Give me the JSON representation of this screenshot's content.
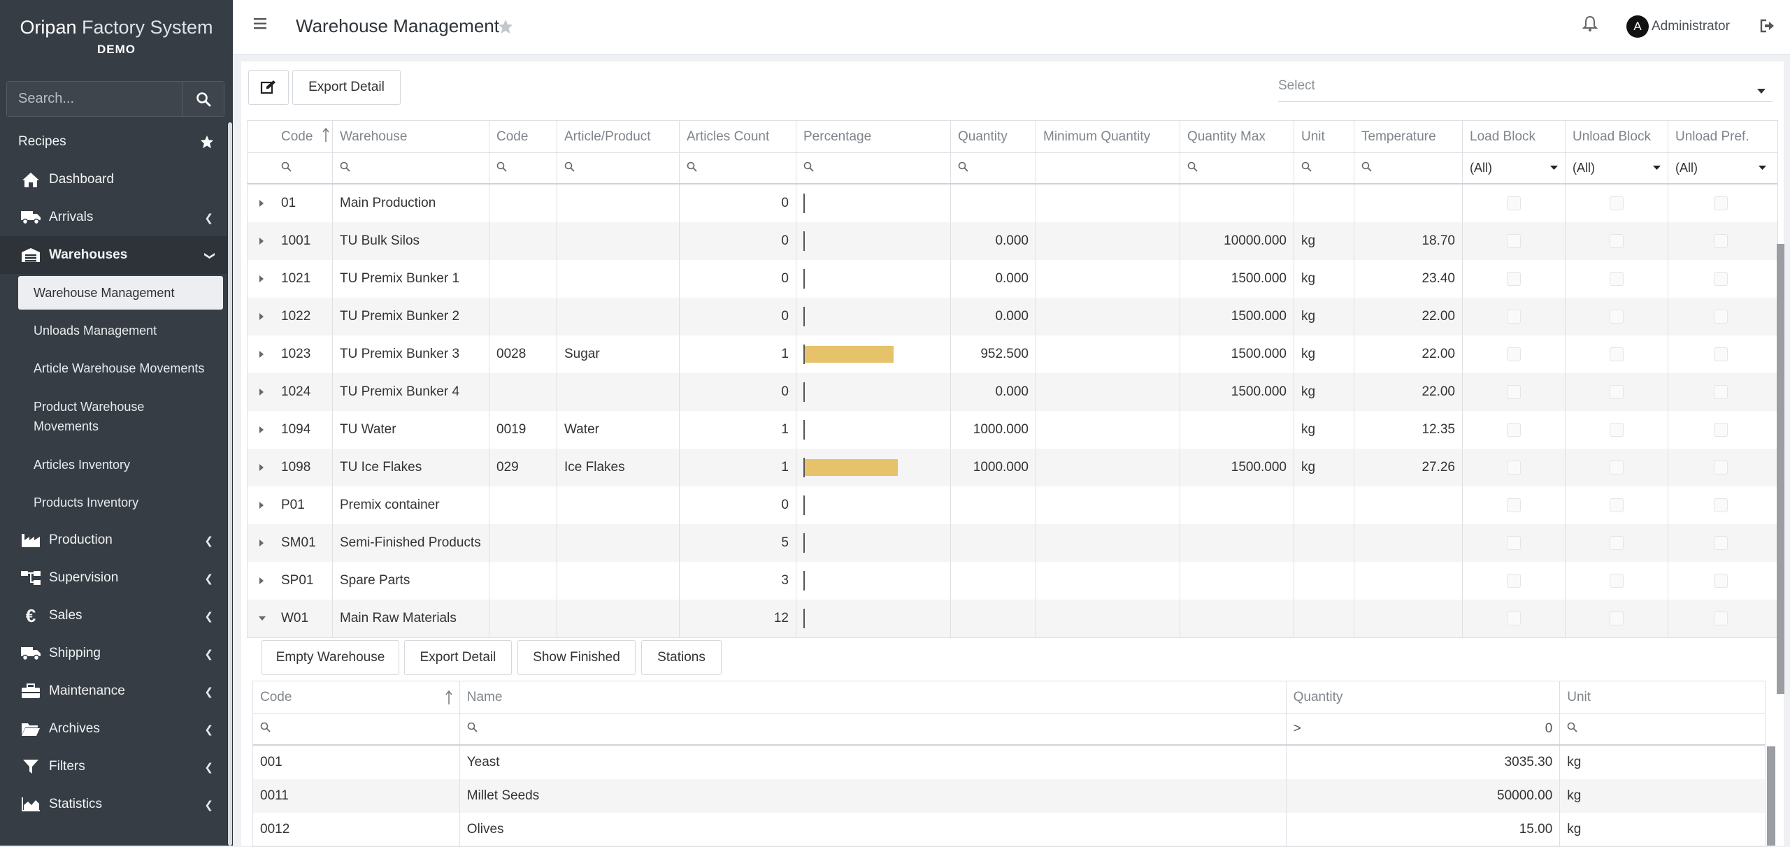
{
  "sidebar": {
    "brand": {
      "name_part1": "Oripan",
      "name_part2": "Factory System",
      "edition": "DEMO"
    },
    "search": {
      "placeholder": "Search..."
    },
    "items": [
      {
        "label": "Recipes"
      },
      {
        "label": "Dashboard"
      },
      {
        "label": "Arrivals"
      },
      {
        "label": "Warehouses"
      },
      {
        "label": "Production"
      },
      {
        "label": "Supervision"
      },
      {
        "label": "Sales"
      },
      {
        "label": "Shipping"
      },
      {
        "label": "Maintenance"
      },
      {
        "label": "Archives"
      },
      {
        "label": "Filters"
      },
      {
        "label": "Statistics"
      }
    ],
    "warehouse_sub": [
      {
        "label": "Warehouse Management"
      },
      {
        "label": "Unloads Management"
      },
      {
        "label": "Article Warehouse Movements"
      },
      {
        "label": "Product Warehouse Movements"
      },
      {
        "label": "Articles Inventory"
      },
      {
        "label": "Products Inventory"
      }
    ]
  },
  "header": {
    "title": "Warehouse Management",
    "user": "Administrator",
    "avatar_letter": "A"
  },
  "toolbar": {
    "export_label": "Export Detail",
    "select_placeholder": "Select"
  },
  "grid": {
    "columns": [
      "Code",
      "Warehouse",
      "Code",
      "Article/Product",
      "Articles Count",
      "Percentage",
      "Quantity",
      "Minimum Quantity",
      "Quantity Max",
      "Unit",
      "Temperature",
      "Load Block",
      "Unload Block",
      "Unload Pref."
    ],
    "filter_all": "(All)",
    "rows": [
      {
        "code": "01",
        "warehouse": "Main Production",
        "code2": "",
        "article": "",
        "count": "0",
        "pct": 0,
        "qty": "",
        "max": "",
        "unit": "",
        "temp": ""
      },
      {
        "code": "1001",
        "warehouse": "TU Bulk Silos",
        "code2": "",
        "article": "",
        "count": "0",
        "pct": 0,
        "qty": "0.000",
        "max": "10000.000",
        "unit": "kg",
        "temp": "18.70"
      },
      {
        "code": "1021",
        "warehouse": "TU Premix Bunker 1",
        "code2": "",
        "article": "",
        "count": "0",
        "pct": 0,
        "qty": "0.000",
        "max": "1500.000",
        "unit": "kg",
        "temp": "23.40"
      },
      {
        "code": "1022",
        "warehouse": "TU Premix Bunker 2",
        "code2": "",
        "article": "",
        "count": "0",
        "pct": 0,
        "qty": "0.000",
        "max": "1500.000",
        "unit": "kg",
        "temp": "22.00"
      },
      {
        "code": "1023",
        "warehouse": "TU Premix Bunker 3",
        "code2": "0028",
        "article": "Sugar",
        "count": "1",
        "pct": 63.5,
        "qty": "952.500",
        "max": "1500.000",
        "unit": "kg",
        "temp": "22.00"
      },
      {
        "code": "1024",
        "warehouse": "TU Premix Bunker 4",
        "code2": "",
        "article": "",
        "count": "0",
        "pct": 0,
        "qty": "0.000",
        "max": "1500.000",
        "unit": "kg",
        "temp": "22.00"
      },
      {
        "code": "1094",
        "warehouse": "TU Water",
        "code2": "0019",
        "article": "Water",
        "count": "1",
        "pct": 0,
        "qty": "1000.000",
        "max": "",
        "unit": "kg",
        "temp": "12.35"
      },
      {
        "code": "1098",
        "warehouse": "TU Ice Flakes",
        "code2": "029",
        "article": "Ice Flakes",
        "count": "1",
        "pct": 66.7,
        "qty": "1000.000",
        "max": "1500.000",
        "unit": "kg",
        "temp": "27.26"
      },
      {
        "code": "P01",
        "warehouse": "Premix container",
        "code2": "",
        "article": "",
        "count": "0",
        "pct": 0,
        "qty": "",
        "max": "",
        "unit": "",
        "temp": ""
      },
      {
        "code": "SM01",
        "warehouse": "Semi-Finished Products",
        "code2": "",
        "article": "",
        "count": "5",
        "pct": 0,
        "qty": "",
        "max": "",
        "unit": "",
        "temp": ""
      },
      {
        "code": "SP01",
        "warehouse": "Spare Parts",
        "code2": "",
        "article": "",
        "count": "3",
        "pct": 0,
        "qty": "",
        "max": "",
        "unit": "",
        "temp": ""
      },
      {
        "code": "W01",
        "warehouse": "Main Raw Materials",
        "code2": "",
        "article": "",
        "count": "12",
        "pct": 0,
        "qty": "",
        "max": "",
        "unit": "",
        "temp": ""
      }
    ]
  },
  "detail": {
    "buttons": [
      "Empty Warehouse",
      "Export Detail",
      "Show Finished",
      "Stations"
    ],
    "columns": [
      "Code",
      "Name",
      "Quantity",
      "Unit"
    ],
    "qty_filter_op": ">",
    "qty_filter_value": "0",
    "rows": [
      {
        "code": "001",
        "name": "Yeast",
        "qty": "3035.30",
        "unit": "kg"
      },
      {
        "code": "0011",
        "name": "Millet Seeds",
        "qty": "50000.00",
        "unit": "kg"
      },
      {
        "code": "0012",
        "name": "Olives",
        "qty": "15.00",
        "unit": "kg"
      }
    ]
  },
  "colors": {
    "sidebar": "#363d44",
    "bar": "#e6c26a",
    "accent_active": "#2d3339"
  }
}
